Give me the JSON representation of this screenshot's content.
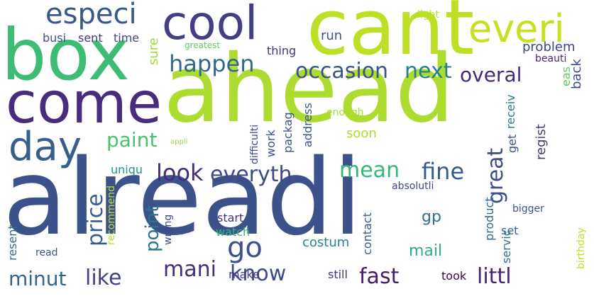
{
  "words": [
    {
      "text": "alreadi",
      "color": "#3b528b",
      "rotate": false
    },
    {
      "text": "ahead",
      "color": "#addc30",
      "rotate": false
    },
    {
      "text": "cant",
      "color": "#bddf26",
      "rotate": false
    },
    {
      "text": "box",
      "color": "#3fbc73",
      "rotate": false
    },
    {
      "text": "come",
      "color": "#472d7b",
      "rotate": false
    },
    {
      "text": "cool",
      "color": "#433e85",
      "rotate": false
    },
    {
      "text": "everi",
      "color": "#c8e020",
      "rotate": false
    },
    {
      "text": "day",
      "color": "#355f8d",
      "rotate": false
    },
    {
      "text": "especi",
      "color": "#38588c",
      "rotate": false
    },
    {
      "text": "occasion",
      "color": "#3b528b",
      "rotate": false
    },
    {
      "text": "next",
      "color": "#27808e",
      "rotate": false
    },
    {
      "text": "overal",
      "color": "#482878",
      "rotate": false
    },
    {
      "text": "happen",
      "color": "#31688e",
      "rotate": false
    },
    {
      "text": "paint",
      "color": "#4ac16d",
      "rotate": false
    },
    {
      "text": "look",
      "color": "#472c7a",
      "rotate": false
    },
    {
      "text": "everyth",
      "color": "#3e4989",
      "rotate": false
    },
    {
      "text": "mean",
      "color": "#35b779",
      "rotate": false
    },
    {
      "text": "fine",
      "color": "#365c8d",
      "rotate": false
    },
    {
      "text": "great",
      "color": "#3e4a89",
      "rotate": true
    },
    {
      "text": "price",
      "color": "#355e8d",
      "rotate": true
    },
    {
      "text": "point",
      "color": "#2a768e",
      "rotate": true
    },
    {
      "text": "go",
      "color": "#3b528b",
      "rotate": false
    },
    {
      "text": "mani",
      "color": "#472d7b",
      "rotate": false
    },
    {
      "text": "know",
      "color": "#3e4989",
      "rotate": false
    },
    {
      "text": "like",
      "color": "#424086",
      "rotate": false
    },
    {
      "text": "minut",
      "color": "#32658e",
      "rotate": false
    },
    {
      "text": "fast",
      "color": "#481b6d",
      "rotate": false
    },
    {
      "text": "littl",
      "color": "#482173",
      "rotate": false
    },
    {
      "text": "mail",
      "color": "#2ab07f",
      "rotate": false
    },
    {
      "text": "costum",
      "color": "#25858e",
      "rotate": false
    },
    {
      "text": "busi",
      "color": "#3d4e8a",
      "rotate": false
    },
    {
      "text": "sent",
      "color": "#453781",
      "rotate": false
    },
    {
      "text": "time",
      "color": "#3f4788",
      "rotate": false
    },
    {
      "text": "sure",
      "color": "#a2da37",
      "rotate": true
    },
    {
      "text": "run",
      "color": "#3b528b",
      "rotate": false
    },
    {
      "text": "thing",
      "color": "#46337f",
      "rotate": false
    },
    {
      "text": "problem",
      "color": "#414487",
      "rotate": false
    },
    {
      "text": "back",
      "color": "#3e4989",
      "rotate": true
    },
    {
      "text": "eas",
      "color": "#5ec962",
      "rotate": true
    },
    {
      "text": "receiv",
      "color": "#2a788e",
      "rotate": true
    },
    {
      "text": "regist",
      "color": "#453781",
      "rotate": true
    },
    {
      "text": "get",
      "color": "#3d4e8a",
      "rotate": true
    },
    {
      "text": "soon",
      "color": "#addc30",
      "rotate": false
    },
    {
      "text": "work",
      "color": "#3b528b",
      "rotate": true
    },
    {
      "text": "packag",
      "color": "#3b528b",
      "rotate": true
    },
    {
      "text": "address",
      "color": "#39568c",
      "rotate": true
    },
    {
      "text": "difficulti",
      "color": "#404688",
      "rotate": true
    },
    {
      "text": "uniqu",
      "color": "#1f968b",
      "rotate": false
    },
    {
      "text": "recommend",
      "color": "#bddf26",
      "rotate": true
    },
    {
      "text": "wrong",
      "color": "#3f4788",
      "rotate": true
    },
    {
      "text": "start",
      "color": "#46307e",
      "rotate": false
    },
    {
      "text": "watch",
      "color": "#32b67a",
      "rotate": false
    },
    {
      "text": "contact",
      "color": "#365c8d",
      "rotate": true
    },
    {
      "text": "gp",
      "color": "#2e6e8e",
      "rotate": false
    },
    {
      "text": "product",
      "color": "#31688e",
      "rotate": true
    },
    {
      "text": "servic",
      "color": "#2c728e",
      "rotate": true
    },
    {
      "text": "set",
      "color": "#33638d",
      "rotate": false
    },
    {
      "text": "bigger",
      "color": "#3b528b",
      "rotate": false
    },
    {
      "text": "resent",
      "color": "#2f6c8e",
      "rotate": true
    },
    {
      "text": "make",
      "color": "#453882",
      "rotate": false
    },
    {
      "text": "still",
      "color": "#46327e",
      "rotate": false
    },
    {
      "text": "took",
      "color": "#440154",
      "rotate": false
    },
    {
      "text": "read",
      "color": "#3b528b",
      "rotate": false
    },
    {
      "text": "absolutli",
      "color": "#414487",
      "rotate": false
    },
    {
      "text": "greatest",
      "color": "#5ec962",
      "rotate": false
    },
    {
      "text": "light",
      "color": "#b5de2b",
      "rotate": false
    },
    {
      "text": "beauti",
      "color": "#482878",
      "rotate": false
    },
    {
      "text": "enough",
      "color": "#addc30",
      "rotate": false
    },
    {
      "text": "birthday",
      "color": "#c2df23",
      "rotate": true
    },
    {
      "text": "appli",
      "color": "#9bd93c",
      "rotate": false
    }
  ]
}
